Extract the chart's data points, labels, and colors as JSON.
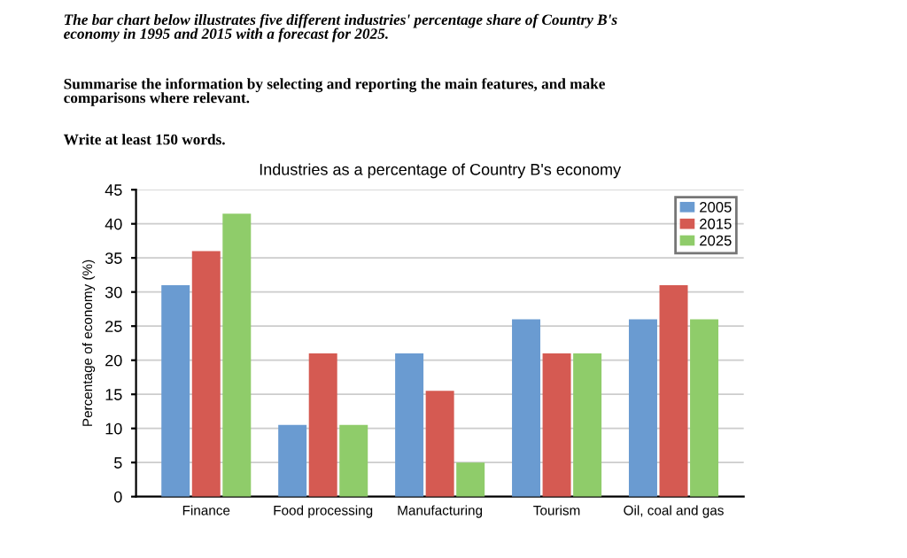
{
  "chart_data": {
    "type": "bar",
    "title": "Industries as a percentage of Country B's economy",
    "annotations": [
      "The bar chart below illustrates five different industries' percentage share of Country B's\neconomy in 1995 and 2015 with a forecast for 2025.",
      "Summarise the information by selecting and reporting the main features, and make\ncomparisons where relevant.",
      "Write at least 150 words."
    ],
    "ylabel": "Percentage of economy (%)",
    "categories": [
      "Finance",
      "Food processing",
      "Manufacturing",
      "Tourism",
      "Oil, coal and gas"
    ],
    "series": [
      {
        "name": "2005",
        "color": "#6a9bd1",
        "values": [
          31,
          10.5,
          21,
          26,
          26
        ]
      },
      {
        "name": "2015",
        "color": "#d55a52",
        "values": [
          36,
          21,
          15.5,
          21,
          31
        ]
      },
      {
        "name": "2025",
        "color": "#8fcc6a",
        "values": [
          41.5,
          10.5,
          5,
          21,
          26
        ]
      }
    ],
    "ylim": [
      0,
      45
    ],
    "yticks": [
      0,
      5,
      10,
      15,
      20,
      25,
      30,
      35,
      40,
      45
    ],
    "grid": "y",
    "legend": "top right"
  }
}
